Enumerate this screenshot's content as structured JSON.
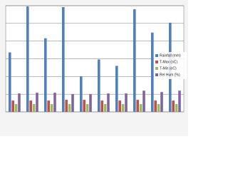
{
  "chart_data": {
    "type": "bar",
    "series": [
      {
        "name": "Rainfall (mm)",
        "color": "#4f81bd",
        "values": [
          3.36,
          5.96,
          4.16,
          5.92,
          2.0,
          2.96,
          2.6,
          5.8,
          4.48,
          5.04
        ]
      },
      {
        "name": "T-Max (oC)",
        "color": "#c0504d",
        "values": [
          0.64,
          0.64,
          0.64,
          0.68,
          0.68,
          0.64,
          0.64,
          0.68,
          0.64,
          0.64
        ]
      },
      {
        "name": "T-Min (oC)",
        "color": "#9bbb59",
        "values": [
          0.44,
          0.44,
          0.44,
          0.44,
          0.44,
          0.44,
          0.44,
          0.44,
          0.44,
          0.44
        ]
      },
      {
        "name": "Rel Hum (%)",
        "color": "#8064a2",
        "values": [
          1.04,
          1.08,
          1.08,
          1.0,
          1.0,
          1.04,
          1.04,
          1.2,
          1.12,
          1.2
        ]
      }
    ],
    "ylim": [
      0,
      6
    ],
    "yticks": [
      0,
      1,
      2,
      3,
      4,
      5,
      6
    ],
    "grid": true
  }
}
